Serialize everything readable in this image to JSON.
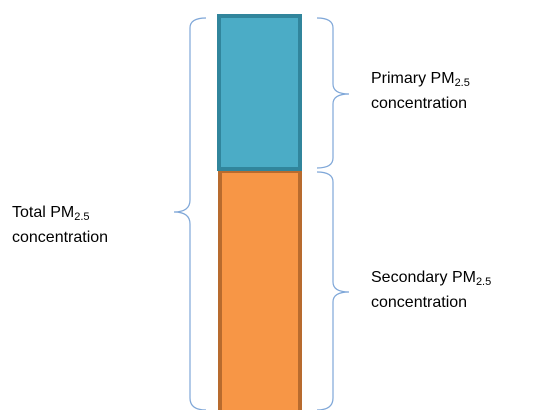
{
  "labels": {
    "total": {
      "prefix": "Total PM",
      "subscript": "2.5",
      "line2": "concentration"
    },
    "primary": {
      "prefix": "Primary PM",
      "subscript": "2.5",
      "line2": "concentration"
    },
    "secondary": {
      "prefix": "Secondary PM",
      "subscript": "2.5",
      "line2": "concentration"
    }
  },
  "colors": {
    "primary_fill": "#4BACC6",
    "primary_border": "#31859C",
    "secondary_fill": "#F79646",
    "secondary_border": "#B86B2E",
    "brace": "#7FA7D8"
  }
}
